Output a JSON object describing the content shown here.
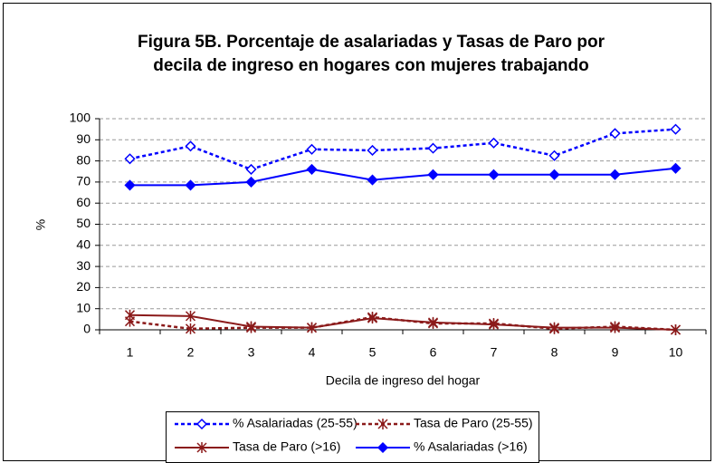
{
  "chart_data": {
    "type": "line",
    "title": [
      "Figura 5B. Porcentaje de asalariadas y Tasas de Paro por",
      "decila de ingreso en hogares con mujeres trabajando"
    ],
    "xlabel": "Decila de ingreso del hogar",
    "ylabel": "%",
    "categories": [
      "1",
      "2",
      "3",
      "4",
      "5",
      "6",
      "7",
      "8",
      "9",
      "10"
    ],
    "ylim": [
      0,
      100
    ],
    "yticks": [
      0,
      10,
      20,
      30,
      40,
      50,
      60,
      70,
      80,
      90,
      100
    ],
    "grid": true,
    "legend": "bottom",
    "series": [
      {
        "name": "% Asalariadas (25-55)",
        "color": "#0000ff",
        "dashed": true,
        "marker": "diamond-open",
        "values": [
          81,
          87,
          76,
          85.5,
          85,
          86,
          88.5,
          82.5,
          93,
          95
        ]
      },
      {
        "name": "Tasa de Paro (25-55)",
        "color": "#8b1a1a",
        "dashed": true,
        "marker": "star",
        "values": [
          4,
          0.5,
          1,
          1,
          6,
          3,
          3,
          0.5,
          1.5,
          0
        ]
      },
      {
        "name": "Tasa de Paro (>16)",
        "color": "#8b1a1a",
        "dashed": false,
        "marker": "star",
        "values": [
          7,
          6.5,
          1.5,
          1,
          5.5,
          3.5,
          2.5,
          1,
          1,
          0
        ]
      },
      {
        "name": "% Asalariadas (>16)",
        "color": "#0000ff",
        "dashed": false,
        "marker": "diamond",
        "values": [
          68.5,
          68.5,
          70,
          76,
          71,
          73.5,
          73.5,
          73.5,
          73.5,
          76.5
        ]
      }
    ]
  }
}
